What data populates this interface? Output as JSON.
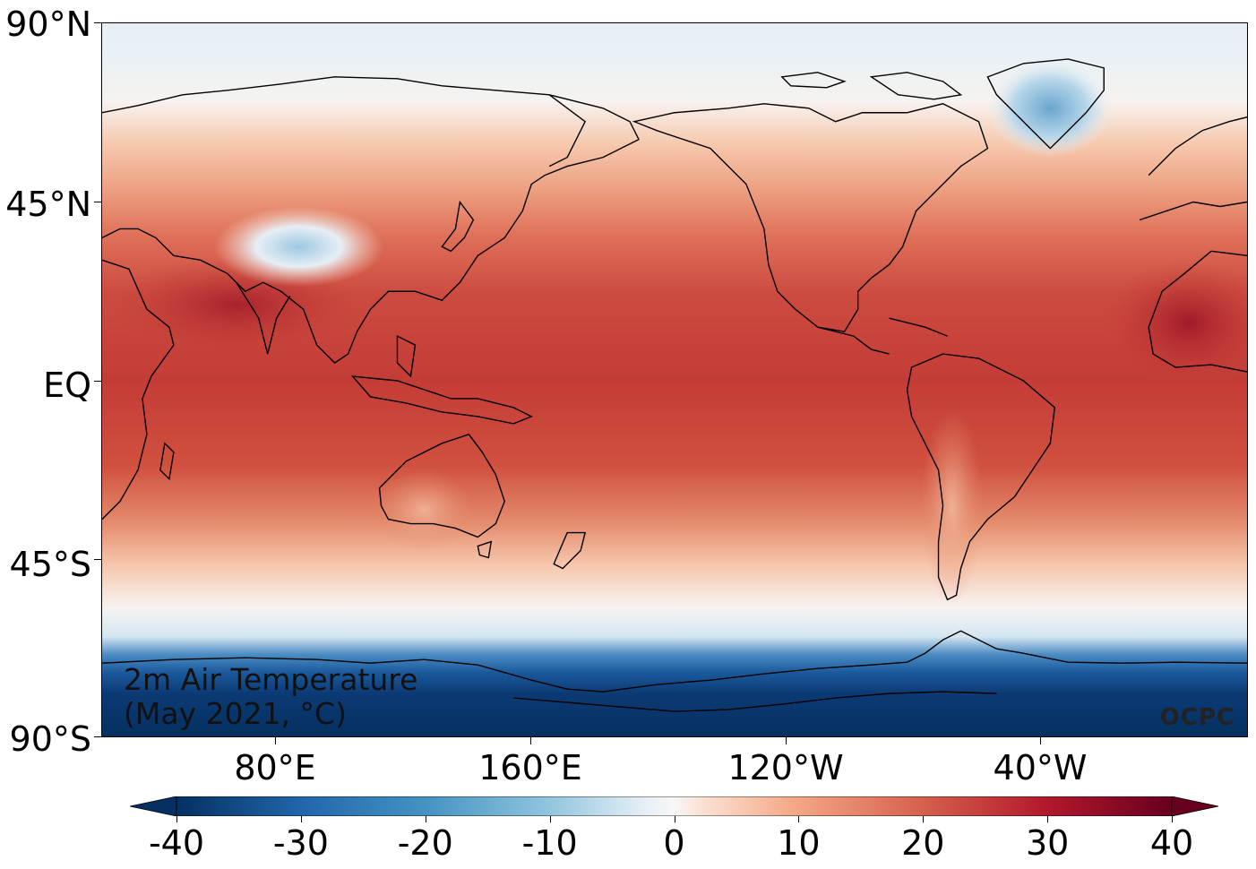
{
  "map": {
    "title_line1": "2m Air Temperature",
    "title_line2": "(May 2021, °C)",
    "credit": "OCPC",
    "lat_labels": [
      "90°N",
      "45°N",
      "EQ",
      "45°S",
      "90°S"
    ],
    "lon_labels": [
      "80°E",
      "160°E",
      "120°W",
      "40°W"
    ],
    "colormap": "RdBu_r",
    "colors": {
      "coldest": "#053061",
      "cold": "#2166ac",
      "cool": "#92c5de",
      "neutral": "#f7f7f7",
      "warm": "#f4a582",
      "hot": "#d6604d",
      "hottest": "#67001f"
    }
  },
  "colorbar": {
    "min": -40,
    "max": 40,
    "tick_labels": [
      "-40",
      "-30",
      "-20",
      "-10",
      "0",
      "10",
      "20",
      "30",
      "40"
    ],
    "extend": "both"
  }
}
